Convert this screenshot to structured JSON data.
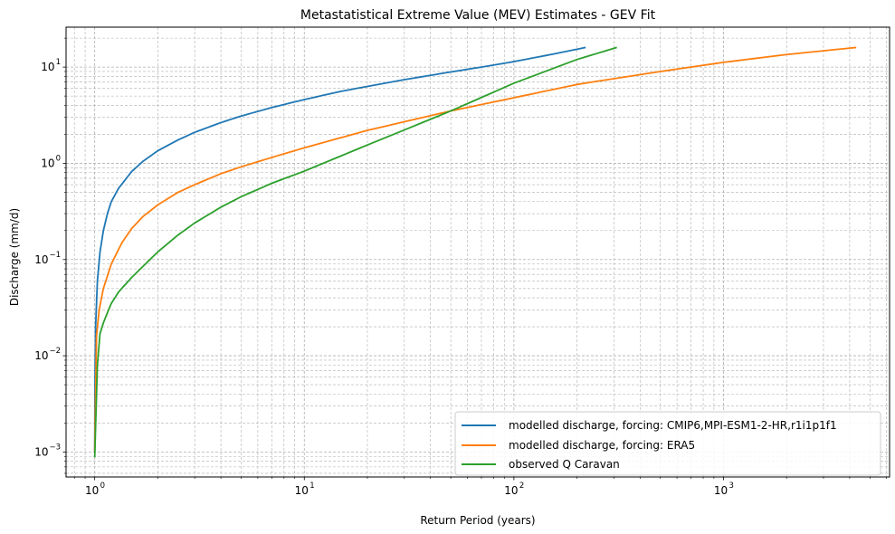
{
  "chart_data": {
    "type": "line",
    "title": "Metastatistical Extreme Value (MEV) Estimates - GEV Fit",
    "xlabel": "Return Period (years)",
    "ylabel": "Discharge (mm/d)",
    "xscale": "log",
    "yscale": "log",
    "xlim": [
      0.73,
      6200
    ],
    "ylim": [
      0.00055,
      26
    ],
    "grid": true,
    "legend_position": "bottom-right",
    "x_ticks": [
      {
        "value": 1,
        "base": "10",
        "exp": "0"
      },
      {
        "value": 10,
        "base": "10",
        "exp": "1"
      },
      {
        "value": 100,
        "base": "10",
        "exp": "2"
      },
      {
        "value": 1000,
        "base": "10",
        "exp": "3"
      }
    ],
    "y_ticks": [
      {
        "value": 0.001,
        "base": "10",
        "exp": "−3"
      },
      {
        "value": 0.01,
        "base": "10",
        "exp": "−2"
      },
      {
        "value": 0.1,
        "base": "10",
        "exp": "−1"
      },
      {
        "value": 1,
        "base": "10",
        "exp": "0"
      },
      {
        "value": 10,
        "base": "10",
        "exp": "1"
      }
    ],
    "series": [
      {
        "name": "modelled discharge, forcing: CMIP6,MPI-ESM1-2-HR,r1i1p1f1",
        "color": "#1f77b4",
        "x": [
          1.0,
          1.003,
          1.01,
          1.03,
          1.06,
          1.1,
          1.15,
          1.2,
          1.3,
          1.5,
          1.7,
          2.0,
          2.5,
          3.0,
          4.0,
          5.0,
          7.0,
          10.0,
          15.0,
          20.0,
          30.0,
          50.0,
          70.0,
          100.0,
          150.0,
          220.0
        ],
        "y": [
          0.001,
          0.005,
          0.02,
          0.06,
          0.12,
          0.2,
          0.3,
          0.4,
          0.55,
          0.82,
          1.05,
          1.35,
          1.75,
          2.1,
          2.65,
          3.1,
          3.8,
          4.6,
          5.6,
          6.3,
          7.4,
          8.9,
          10.0,
          11.4,
          13.5,
          16.0
        ]
      },
      {
        "name": "modelled discharge, forcing: ERA5",
        "color": "#ff7f0e",
        "x": [
          1.0,
          1.02,
          1.05,
          1.1,
          1.2,
          1.35,
          1.5,
          1.7,
          2.0,
          2.5,
          3.0,
          4.0,
          5.0,
          7.0,
          10.0,
          20.0,
          50.0,
          100.0,
          200.0,
          500.0,
          1000.0,
          2000.0,
          4300.0
        ],
        "y": [
          0.001,
          0.016,
          0.03,
          0.05,
          0.09,
          0.15,
          0.21,
          0.28,
          0.37,
          0.5,
          0.6,
          0.78,
          0.92,
          1.15,
          1.45,
          2.2,
          3.5,
          4.8,
          6.6,
          9.0,
          11.2,
          13.5,
          16.0
        ]
      },
      {
        "name": "observed Q Caravan",
        "color": "#2ca02c",
        "x": [
          1.0,
          1.03,
          1.06,
          1.1,
          1.15,
          1.2,
          1.3,
          1.5,
          1.7,
          2.0,
          2.5,
          3.0,
          4.0,
          5.0,
          7.0,
          10.0,
          20.0,
          50.0,
          100.0,
          200.0,
          310.0
        ],
        "y": [
          0.00088,
          0.008,
          0.017,
          0.022,
          0.028,
          0.035,
          0.046,
          0.065,
          0.085,
          0.12,
          0.18,
          0.24,
          0.35,
          0.45,
          0.62,
          0.83,
          1.55,
          3.5,
          6.8,
          12.0,
          16.0
        ]
      }
    ]
  }
}
